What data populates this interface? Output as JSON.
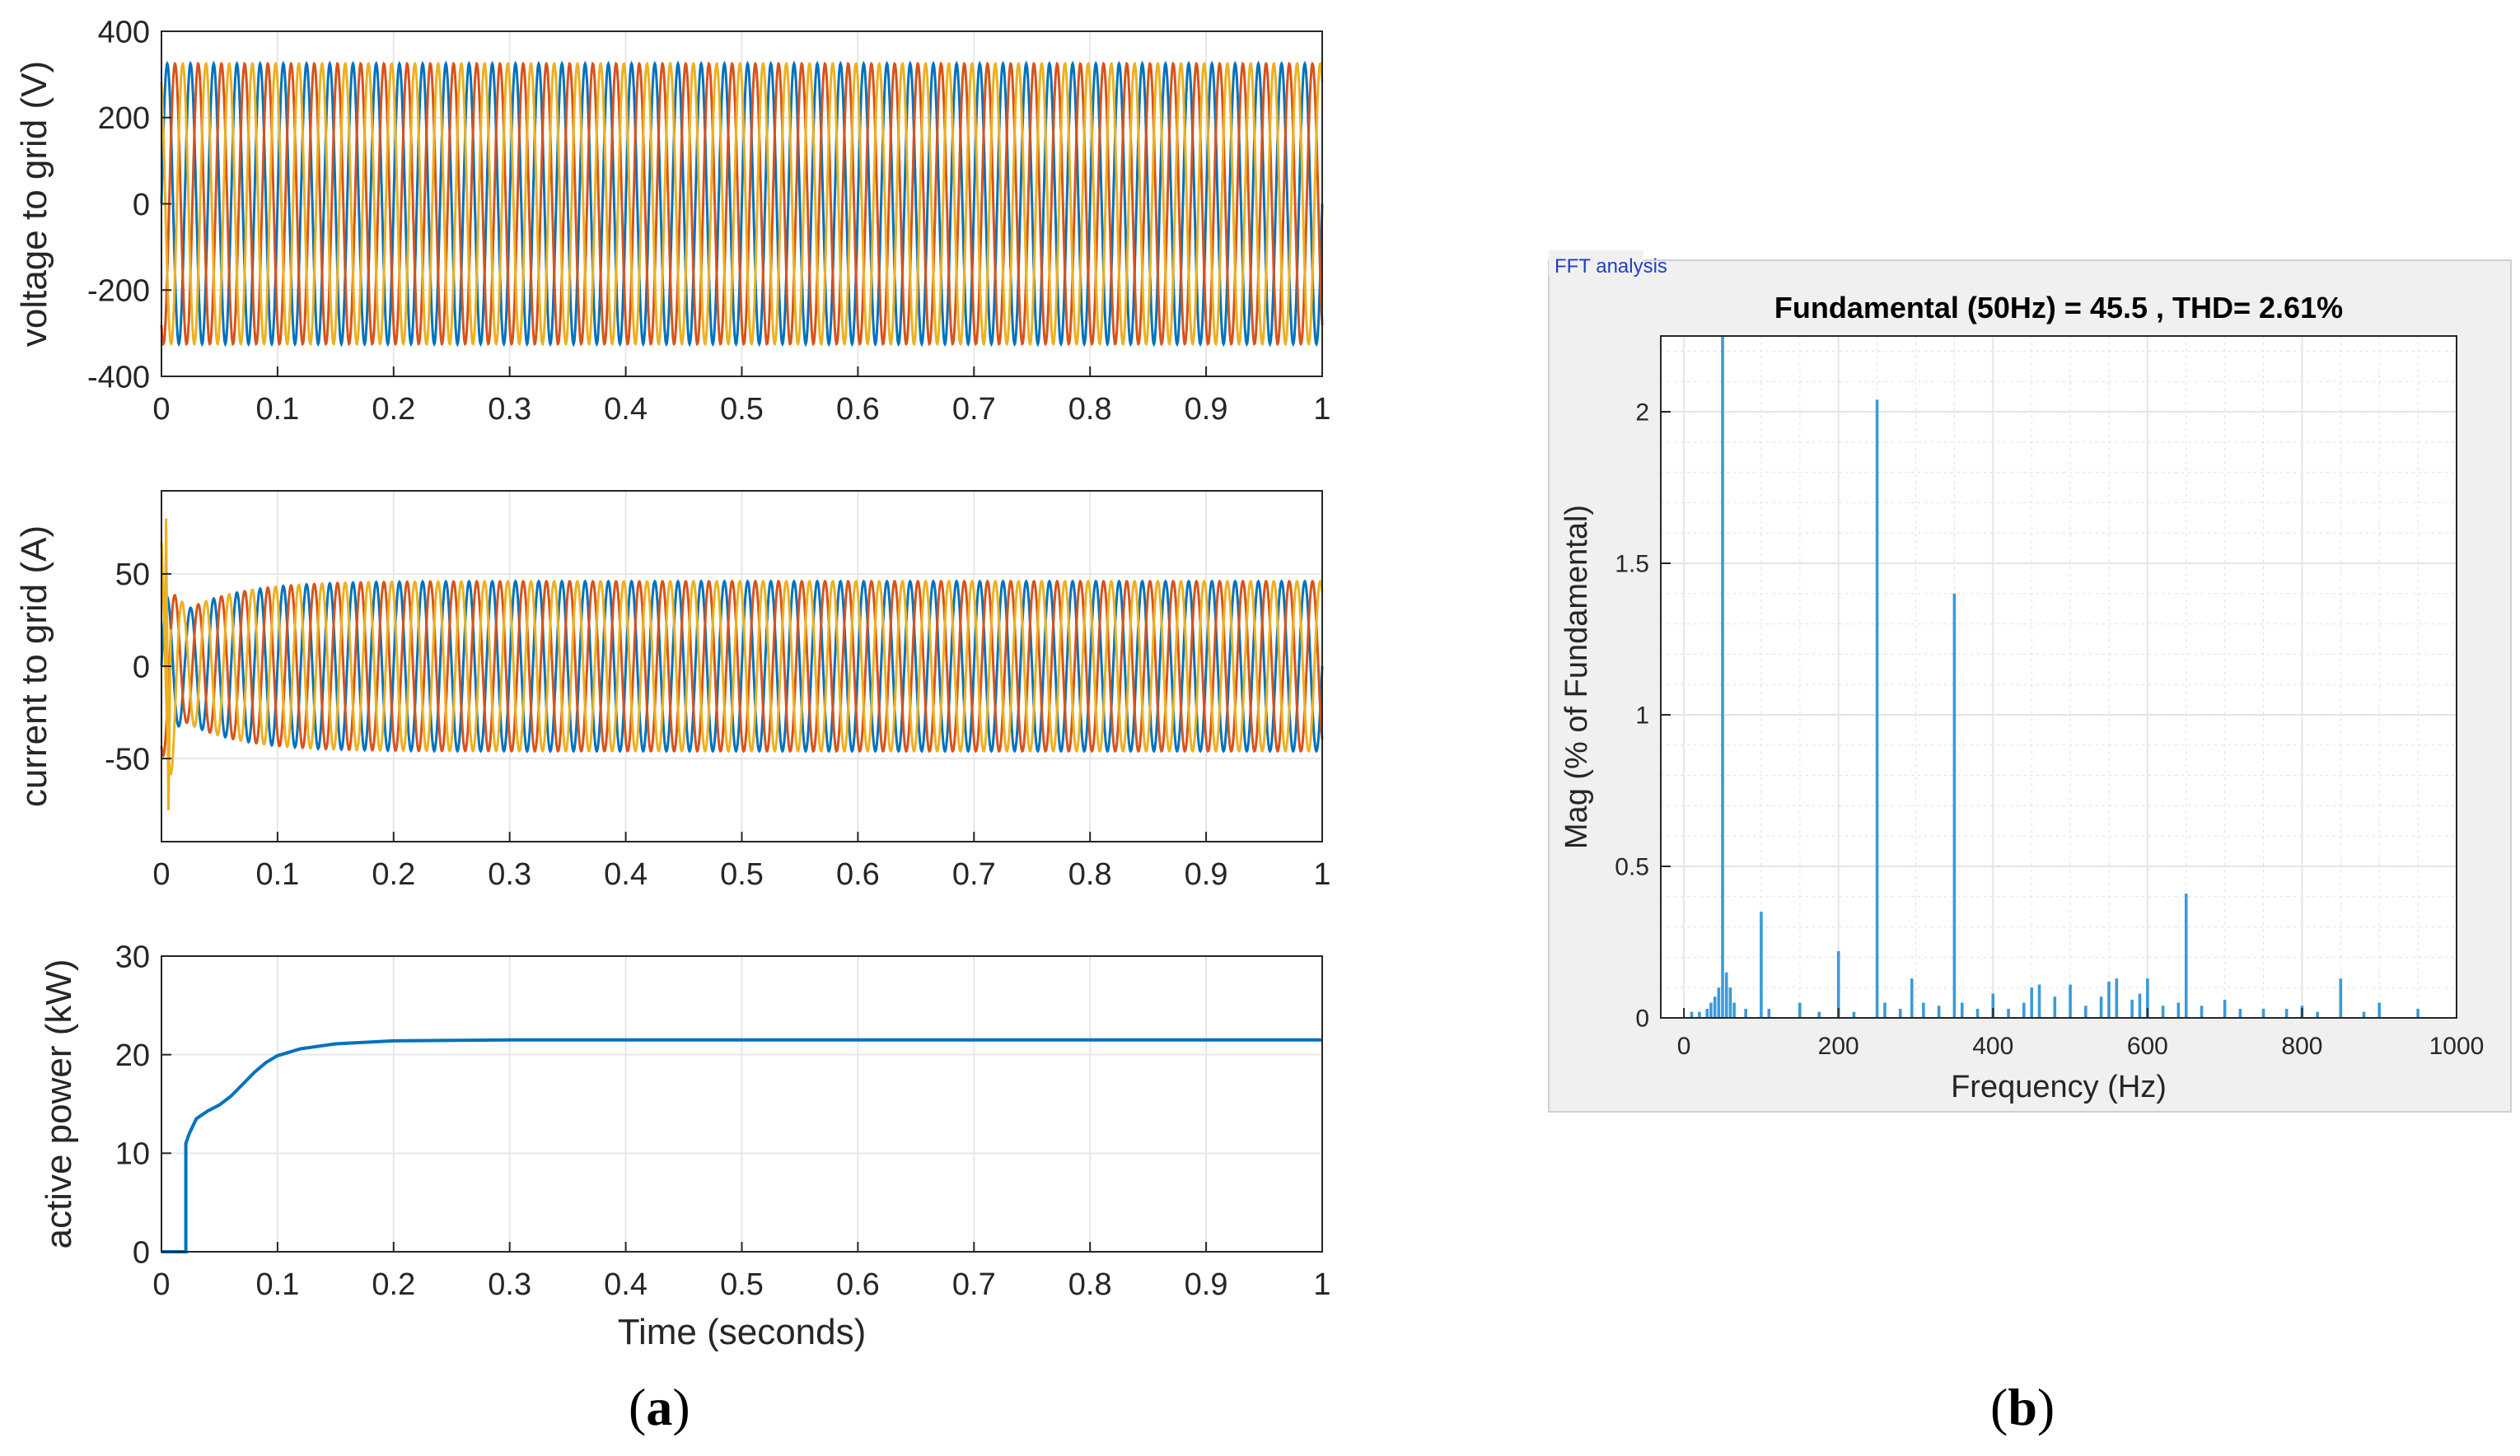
{
  "panel_labels": {
    "a": "a",
    "b": "b"
  },
  "fft_window_title": "FFT analysis",
  "colors": {
    "phase_a": "#0072BD",
    "phase_b": "#D95319",
    "phase_c": "#EDB120",
    "fft_bar": "#3a9ad9",
    "grid": "#e6e6e6",
    "axis": "#262626",
    "fft_bg": "#f0f0f0"
  },
  "chart_data": [
    {
      "id": "voltage",
      "type": "line",
      "title": "",
      "xlabel": "",
      "ylabel": "voltage to grid (V)",
      "xlim": [
        0,
        1
      ],
      "ylim": [
        -400,
        400
      ],
      "xticks": [
        "0",
        "0.1",
        "0.2",
        "0.3",
        "0.4",
        "0.5",
        "0.6",
        "0.7",
        "0.8",
        "0.9",
        "1"
      ],
      "yticks": [
        "-400",
        "-200",
        "0",
        "200",
        "400"
      ],
      "series": [
        {
          "name": "phase a",
          "frequency_hz": 50,
          "amplitude": 325,
          "phase_deg": 0
        },
        {
          "name": "phase b",
          "frequency_hz": 50,
          "amplitude": 325,
          "phase_deg": -120
        },
        {
          "name": "phase c",
          "frequency_hz": 50,
          "amplitude": 325,
          "phase_deg": 120
        }
      ]
    },
    {
      "id": "current",
      "type": "line",
      "title": "",
      "xlabel": "",
      "ylabel": "current to grid (A)",
      "xlim": [
        0,
        1
      ],
      "ylim": [
        -95,
        95
      ],
      "xticks": [
        "0",
        "0.1",
        "0.2",
        "0.3",
        "0.4",
        "0.5",
        "0.6",
        "0.7",
        "0.8",
        "0.9",
        "1"
      ],
      "yticks": [
        "-50",
        "0",
        "50"
      ],
      "series": [
        {
          "name": "phase a",
          "frequency_hz": 50,
          "amplitude_start": 30,
          "amplitude_steady": 46,
          "settle_time_s": 0.15,
          "phase_deg": 0
        },
        {
          "name": "phase b",
          "frequency_hz": 50,
          "amplitude_start": 30,
          "amplitude_steady": 46,
          "settle_time_s": 0.15,
          "phase_deg": -120
        },
        {
          "name": "phase c",
          "frequency_hz": 50,
          "amplitude_start": 30,
          "amplitude_steady": 46,
          "settle_time_s": 0.15,
          "phase_deg": 120
        }
      ],
      "transient_peaks": [
        80,
        -78
      ]
    },
    {
      "id": "power",
      "type": "line",
      "title": "",
      "xlabel": "Time (seconds)",
      "ylabel": "active power (kW)",
      "xlim": [
        0,
        1
      ],
      "ylim": [
        0,
        30
      ],
      "xticks": [
        "0",
        "0.1",
        "0.2",
        "0.3",
        "0.4",
        "0.5",
        "0.6",
        "0.7",
        "0.8",
        "0.9",
        "1"
      ],
      "yticks": [
        "0",
        "10",
        "20",
        "30"
      ],
      "series": [
        {
          "name": "active power",
          "x": [
            0.0,
            0.021,
            0.021,
            0.024,
            0.03,
            0.04,
            0.05,
            0.06,
            0.07,
            0.08,
            0.09,
            0.1,
            0.12,
            0.15,
            0.2,
            0.3,
            0.5,
            1.0
          ],
          "y": [
            0.0,
            0.0,
            11.0,
            12.0,
            13.5,
            14.3,
            14.9,
            15.8,
            17.0,
            18.2,
            19.2,
            19.9,
            20.6,
            21.1,
            21.4,
            21.5,
            21.5,
            21.5
          ]
        }
      ]
    },
    {
      "id": "fft",
      "type": "bar",
      "title": "Fundamental (50Hz) = 45.5 , THD= 2.61%",
      "xlabel": "Frequency (Hz)",
      "ylabel": "Mag (% of Fundamental)",
      "xlim": [
        -30,
        1000
      ],
      "ylim": [
        0,
        2.25
      ],
      "xticks": [
        "0",
        "200",
        "400",
        "600",
        "800",
        "1000"
      ],
      "yticks": [
        "0",
        "0.5",
        "1",
        "1.5",
        "2"
      ],
      "x": [
        10,
        20,
        30,
        35,
        40,
        45,
        50,
        55,
        60,
        65,
        80,
        100,
        110,
        150,
        175,
        200,
        220,
        250,
        260,
        280,
        295,
        310,
        330,
        350,
        360,
        380,
        400,
        420,
        440,
        450,
        460,
        480,
        500,
        520,
        540,
        550,
        560,
        580,
        590,
        600,
        620,
        640,
        650,
        670,
        700,
        720,
        750,
        780,
        800,
        820,
        850,
        880,
        900,
        950
      ],
      "values": [
        0.02,
        0.02,
        0.03,
        0.05,
        0.07,
        0.1,
        2.25,
        0.15,
        0.1,
        0.05,
        0.03,
        0.35,
        0.03,
        0.05,
        0.02,
        0.22,
        0.02,
        2.04,
        0.05,
        0.03,
        0.13,
        0.05,
        0.04,
        1.4,
        0.05,
        0.03,
        0.08,
        0.03,
        0.05,
        0.1,
        0.11,
        0.07,
        0.11,
        0.04,
        0.07,
        0.12,
        0.13,
        0.06,
        0.08,
        0.13,
        0.04,
        0.05,
        0.41,
        0.04,
        0.06,
        0.03,
        0.03,
        0.03,
        0.04,
        0.02,
        0.13,
        0.02,
        0.05,
        0.03
      ]
    }
  ]
}
